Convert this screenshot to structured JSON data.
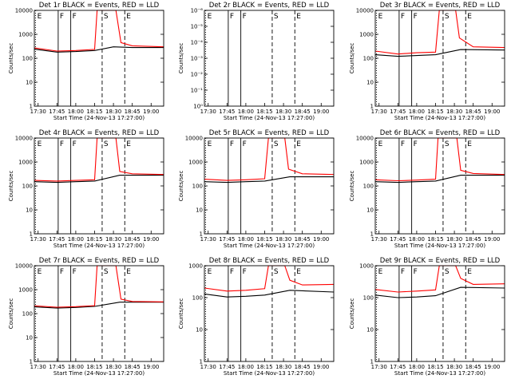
{
  "page": {
    "subtitle": "Start Time (24-Nov-13 17:27:00)",
    "ylabel": "Counts/sec"
  },
  "colors": {
    "events": "#000000",
    "lld": "#ff0000",
    "background": "#ffffff"
  },
  "chart_data": [
    {
      "type": "line",
      "title": "Det 1r BLACK = Events, RED = LLD",
      "xlabel": "Start Time (24-Nov-13 17:27:00)",
      "ylabel": "Counts/sec",
      "x_range": [
        "17:27",
        "19:10"
      ],
      "ylim": [
        1,
        10000
      ],
      "yscale": "log",
      "x_ticks": [
        "17:30",
        "17:45",
        "18:00",
        "18:15",
        "18:30",
        "18:45",
        "19:00"
      ],
      "y_ticks": [
        "1",
        "10",
        "100",
        "1000",
        "10000"
      ],
      "markers": [
        {
          "label": "E",
          "time": "17:28",
          "style": "dotted"
        },
        {
          "label": "F",
          "time": "17:46",
          "style": "solid"
        },
        {
          "label": "F",
          "time": "17:56",
          "style": "solid"
        },
        {
          "label": "S",
          "time": "18:21",
          "style": "dashed"
        },
        {
          "label": "E",
          "time": "18:39",
          "style": "dashed"
        }
      ],
      "series": [
        {
          "name": "Events",
          "values": [
            [
              "17:27",
              240
            ],
            [
              "17:45",
              180
            ],
            [
              "18:00",
              190
            ],
            [
              "18:15",
              210
            ],
            [
              "18:30",
              300
            ],
            [
              "18:45",
              280
            ],
            [
              "19:10",
              280
            ]
          ]
        },
        {
          "name": "LLD",
          "values": [
            [
              "17:27",
              270
            ],
            [
              "17:45",
              200
            ],
            [
              "18:00",
              210
            ],
            [
              "18:15",
              235
            ],
            [
              "18:17",
              10000
            ],
            [
              "18:32",
              10000
            ],
            [
              "18:36",
              450
            ],
            [
              "18:45",
              330
            ],
            [
              "19:10",
              300
            ]
          ]
        }
      ]
    },
    {
      "type": "line",
      "title": "Det 2r BLACK = Events, RED = LLD",
      "xlabel": "Start Time (24-Nov-13 17:27:00)",
      "ylabel": "Counts/sec",
      "x_range": [
        "17:27",
        "19:10"
      ],
      "ylim": [
        1,
        1e-06
      ],
      "yscale": "log",
      "x_ticks": [
        "17:30",
        "17:45",
        "18:00",
        "18:15",
        "18:30",
        "18:45",
        "19:00"
      ],
      "y_ticks": [
        "10⁰",
        "10⁻¹",
        "10⁻²",
        "10⁻³",
        "10⁻⁴",
        "10⁻⁵",
        "10⁻⁶"
      ],
      "markers": [
        {
          "label": "E",
          "time": "17:28",
          "style": "dotted"
        },
        {
          "label": "F",
          "time": "17:46",
          "style": "solid"
        },
        {
          "label": "F",
          "time": "17:56",
          "style": "solid"
        },
        {
          "label": "S",
          "time": "18:21",
          "style": "dashed"
        },
        {
          "label": "E",
          "time": "18:39",
          "style": "dashed"
        }
      ],
      "series": []
    },
    {
      "type": "line",
      "title": "Det 3r BLACK = Events, RED = LLD",
      "xlabel": "Start Time (24-Nov-13 17:27:00)",
      "ylabel": "Counts/sec",
      "x_range": [
        "17:27",
        "19:10"
      ],
      "ylim": [
        1,
        10000
      ],
      "yscale": "log",
      "x_ticks": [
        "17:30",
        "17:45",
        "18:00",
        "18:15",
        "18:30",
        "18:45",
        "19:00"
      ],
      "y_ticks": [
        "1",
        "10",
        "100",
        "1000",
        "10000"
      ],
      "markers": [
        {
          "label": "E",
          "time": "17:28",
          "style": "dotted"
        },
        {
          "label": "F",
          "time": "17:46",
          "style": "solid"
        },
        {
          "label": "F",
          "time": "17:56",
          "style": "solid"
        },
        {
          "label": "S",
          "time": "18:21",
          "style": "dashed"
        },
        {
          "label": "E",
          "time": "18:39",
          "style": "dashed"
        }
      ],
      "series": [
        {
          "name": "Events",
          "values": [
            [
              "17:27",
              140
            ],
            [
              "17:45",
              120
            ],
            [
              "18:00",
              130
            ],
            [
              "18:15",
              140
            ],
            [
              "18:35",
              230
            ],
            [
              "19:10",
              220
            ]
          ]
        },
        {
          "name": "LLD",
          "values": [
            [
              "17:27",
              200
            ],
            [
              "17:45",
              150
            ],
            [
              "18:00",
              170
            ],
            [
              "18:15",
              180
            ],
            [
              "18:18",
              10000
            ],
            [
              "18:31",
              10000
            ],
            [
              "18:34",
              700
            ],
            [
              "18:45",
              300
            ],
            [
              "19:10",
              280
            ]
          ]
        }
      ]
    },
    {
      "type": "line",
      "title": "Det 4r BLACK = Events, RED = LLD",
      "xlabel": "Start Time (24-Nov-13 17:27:00)",
      "ylabel": "Counts/sec",
      "x_range": [
        "17:27",
        "19:10"
      ],
      "ylim": [
        1,
        10000
      ],
      "yscale": "log",
      "x_ticks": [
        "17:30",
        "17:45",
        "18:00",
        "18:15",
        "18:30",
        "18:45",
        "19:00"
      ],
      "y_ticks": [
        "1",
        "10",
        "100",
        "1000",
        "10000"
      ],
      "markers": [
        {
          "label": "E",
          "time": "17:28",
          "style": "dotted"
        },
        {
          "label": "F",
          "time": "17:46",
          "style": "solid"
        },
        {
          "label": "F",
          "time": "17:56",
          "style": "solid"
        },
        {
          "label": "S",
          "time": "18:21",
          "style": "dashed"
        },
        {
          "label": "E",
          "time": "18:39",
          "style": "dashed"
        }
      ],
      "series": [
        {
          "name": "Events",
          "values": [
            [
              "17:27",
              150
            ],
            [
              "17:45",
              140
            ],
            [
              "18:00",
              150
            ],
            [
              "18:15",
              160
            ],
            [
              "18:35",
              280
            ],
            [
              "19:10",
              280
            ]
          ]
        },
        {
          "name": "LLD",
          "values": [
            [
              "17:27",
              170
            ],
            [
              "17:45",
              160
            ],
            [
              "18:00",
              170
            ],
            [
              "18:15",
              180
            ],
            [
              "18:17",
              10000
            ],
            [
              "18:32",
              10000
            ],
            [
              "18:35",
              400
            ],
            [
              "18:45",
              320
            ],
            [
              "19:10",
              300
            ]
          ]
        }
      ]
    },
    {
      "type": "line",
      "title": "Det 5r BLACK = Events, RED = LLD",
      "xlabel": "Start Time (24-Nov-13 17:27:00)",
      "ylabel": "Counts/sec",
      "x_range": [
        "17:27",
        "19:10"
      ],
      "ylim": [
        1,
        10000
      ],
      "yscale": "log",
      "x_ticks": [
        "17:30",
        "17:45",
        "18:00",
        "18:15",
        "18:30",
        "18:45",
        "19:00"
      ],
      "y_ticks": [
        "1",
        "10",
        "100",
        "1000",
        "10000"
      ],
      "markers": [
        {
          "label": "E",
          "time": "17:28",
          "style": "dotted"
        },
        {
          "label": "F",
          "time": "17:46",
          "style": "solid"
        },
        {
          "label": "F",
          "time": "17:56",
          "style": "solid"
        },
        {
          "label": "S",
          "time": "18:21",
          "style": "dashed"
        },
        {
          "label": "E",
          "time": "18:39",
          "style": "dashed"
        }
      ],
      "series": [
        {
          "name": "Events",
          "values": [
            [
              "17:27",
              150
            ],
            [
              "17:45",
              140
            ],
            [
              "18:00",
              150
            ],
            [
              "18:15",
              160
            ],
            [
              "18:35",
              240
            ],
            [
              "19:10",
              240
            ]
          ]
        },
        {
          "name": "LLD",
          "values": [
            [
              "17:27",
              190
            ],
            [
              "17:45",
              170
            ],
            [
              "18:00",
              180
            ],
            [
              "18:15",
              200
            ],
            [
              "18:18",
              10000
            ],
            [
              "18:31",
              10000
            ],
            [
              "18:34",
              500
            ],
            [
              "18:45",
              320
            ],
            [
              "19:10",
              300
            ]
          ]
        }
      ]
    },
    {
      "type": "line",
      "title": "Det 6r BLACK = Events, RED = LLD",
      "xlabel": "Start Time (24-Nov-13 17:27:00)",
      "ylabel": "Counts/sec",
      "x_range": [
        "17:27",
        "19:10"
      ],
      "ylim": [
        1,
        10000
      ],
      "yscale": "log",
      "x_ticks": [
        "17:30",
        "17:45",
        "18:00",
        "18:15",
        "18:30",
        "18:45",
        "19:00"
      ],
      "y_ticks": [
        "1",
        "10",
        "100",
        "1000",
        "10000"
      ],
      "markers": [
        {
          "label": "E",
          "time": "17:28",
          "style": "dotted"
        },
        {
          "label": "F",
          "time": "17:46",
          "style": "solid"
        },
        {
          "label": "F",
          "time": "17:56",
          "style": "solid"
        },
        {
          "label": "S",
          "time": "18:21",
          "style": "dashed"
        },
        {
          "label": "E",
          "time": "18:39",
          "style": "dashed"
        }
      ],
      "series": [
        {
          "name": "Events",
          "values": [
            [
              "17:27",
              150
            ],
            [
              "17:45",
              140
            ],
            [
              "18:00",
              150
            ],
            [
              "18:15",
              160
            ],
            [
              "18:35",
              280
            ],
            [
              "19:10",
              280
            ]
          ]
        },
        {
          "name": "LLD",
          "values": [
            [
              "17:27",
              180
            ],
            [
              "17:45",
              165
            ],
            [
              "18:00",
              175
            ],
            [
              "18:15",
              190
            ],
            [
              "18:17",
              10000
            ],
            [
              "18:32",
              10000
            ],
            [
              "18:35",
              450
            ],
            [
              "18:45",
              330
            ],
            [
              "19:10",
              300
            ]
          ]
        }
      ]
    },
    {
      "type": "line",
      "title": "Det 7r BLACK = Events, RED = LLD",
      "xlabel": "Start Time (24-Nov-13 17:27:00)",
      "ylabel": "Counts/sec",
      "x_range": [
        "17:27",
        "19:10"
      ],
      "ylim": [
        1,
        10000
      ],
      "yscale": "log",
      "x_ticks": [
        "17:30",
        "17:45",
        "18:00",
        "18:15",
        "18:30",
        "18:45",
        "19:00"
      ],
      "y_ticks": [
        "1",
        "10",
        "100",
        "1000",
        "10000"
      ],
      "markers": [
        {
          "label": "E",
          "time": "17:28",
          "style": "dotted"
        },
        {
          "label": "F",
          "time": "17:46",
          "style": "solid"
        },
        {
          "label": "F",
          "time": "17:56",
          "style": "solid"
        },
        {
          "label": "S",
          "time": "18:21",
          "style": "dashed"
        },
        {
          "label": "E",
          "time": "18:39",
          "style": "dashed"
        }
      ],
      "series": [
        {
          "name": "Events",
          "values": [
            [
              "17:27",
              190
            ],
            [
              "17:45",
              170
            ],
            [
              "18:00",
              180
            ],
            [
              "18:15",
              200
            ],
            [
              "18:35",
              300
            ],
            [
              "19:10",
              300
            ]
          ]
        },
        {
          "name": "LLD",
          "values": [
            [
              "17:27",
              210
            ],
            [
              "17:45",
              185
            ],
            [
              "18:00",
              195
            ],
            [
              "18:15",
              215
            ],
            [
              "18:17",
              10000
            ],
            [
              "18:32",
              10000
            ],
            [
              "18:36",
              400
            ],
            [
              "18:45",
              320
            ],
            [
              "19:10",
              310
            ]
          ]
        }
      ]
    },
    {
      "type": "line",
      "title": "Det 8r BLACK = Events, RED = LLD",
      "xlabel": "Start Time (24-Nov-13 17:27:00)",
      "ylabel": "Counts/sec",
      "x_range": [
        "17:27",
        "19:10"
      ],
      "ylim": [
        1,
        1000
      ],
      "yscale": "log",
      "x_ticks": [
        "17:30",
        "17:45",
        "18:00",
        "18:15",
        "18:30",
        "18:45",
        "19:00"
      ],
      "y_ticks": [
        "1",
        "10",
        "100",
        "1000"
      ],
      "markers": [
        {
          "label": "E",
          "time": "17:28",
          "style": "dotted"
        },
        {
          "label": "F",
          "time": "17:46",
          "style": "solid"
        },
        {
          "label": "F",
          "time": "17:56",
          "style": "solid"
        },
        {
          "label": "S",
          "time": "18:21",
          "style": "dashed"
        },
        {
          "label": "E",
          "time": "18:39",
          "style": "dashed"
        }
      ],
      "series": [
        {
          "name": "Events",
          "values": [
            [
              "17:27",
              130
            ],
            [
              "17:45",
              105
            ],
            [
              "18:00",
              110
            ],
            [
              "18:15",
              120
            ],
            [
              "18:35",
              170
            ],
            [
              "19:10",
              150
            ]
          ]
        },
        {
          "name": "LLD",
          "values": [
            [
              "17:27",
              200
            ],
            [
              "17:45",
              160
            ],
            [
              "18:00",
              170
            ],
            [
              "18:15",
              190
            ],
            [
              "18:18",
              1000
            ],
            [
              "18:31",
              1000
            ],
            [
              "18:35",
              350
            ],
            [
              "18:45",
              250
            ],
            [
              "19:10",
              260
            ]
          ]
        }
      ]
    },
    {
      "type": "line",
      "title": "Det 9r BLACK = Events, RED = LLD",
      "xlabel": "Start Time (24-Nov-13 17:27:00)",
      "ylabel": "Counts/sec",
      "x_range": [
        "17:27",
        "19:10"
      ],
      "ylim": [
        1,
        1000
      ],
      "yscale": "log",
      "x_ticks": [
        "17:30",
        "17:45",
        "18:00",
        "18:15",
        "18:30",
        "18:45",
        "19:00"
      ],
      "y_ticks": [
        "1",
        "10",
        "100",
        "1000"
      ],
      "markers": [
        {
          "label": "E",
          "time": "17:28",
          "style": "dotted"
        },
        {
          "label": "F",
          "time": "17:46",
          "style": "solid"
        },
        {
          "label": "F",
          "time": "17:56",
          "style": "solid"
        },
        {
          "label": "S",
          "time": "18:21",
          "style": "dashed"
        },
        {
          "label": "E",
          "time": "18:39",
          "style": "dashed"
        }
      ],
      "series": [
        {
          "name": "Events",
          "values": [
            [
              "17:27",
              120
            ],
            [
              "17:45",
              100
            ],
            [
              "18:00",
              105
            ],
            [
              "18:15",
              115
            ],
            [
              "18:35",
              210
            ],
            [
              "19:10",
              200
            ]
          ]
        },
        {
          "name": "LLD",
          "values": [
            [
              "17:27",
              180
            ],
            [
              "17:45",
              150
            ],
            [
              "18:00",
              160
            ],
            [
              "18:15",
              175
            ],
            [
              "18:18",
              1000
            ],
            [
              "18:31",
              1000
            ],
            [
              "18:35",
              400
            ],
            [
              "18:45",
              260
            ],
            [
              "19:10",
              270
            ]
          ]
        }
      ]
    }
  ]
}
